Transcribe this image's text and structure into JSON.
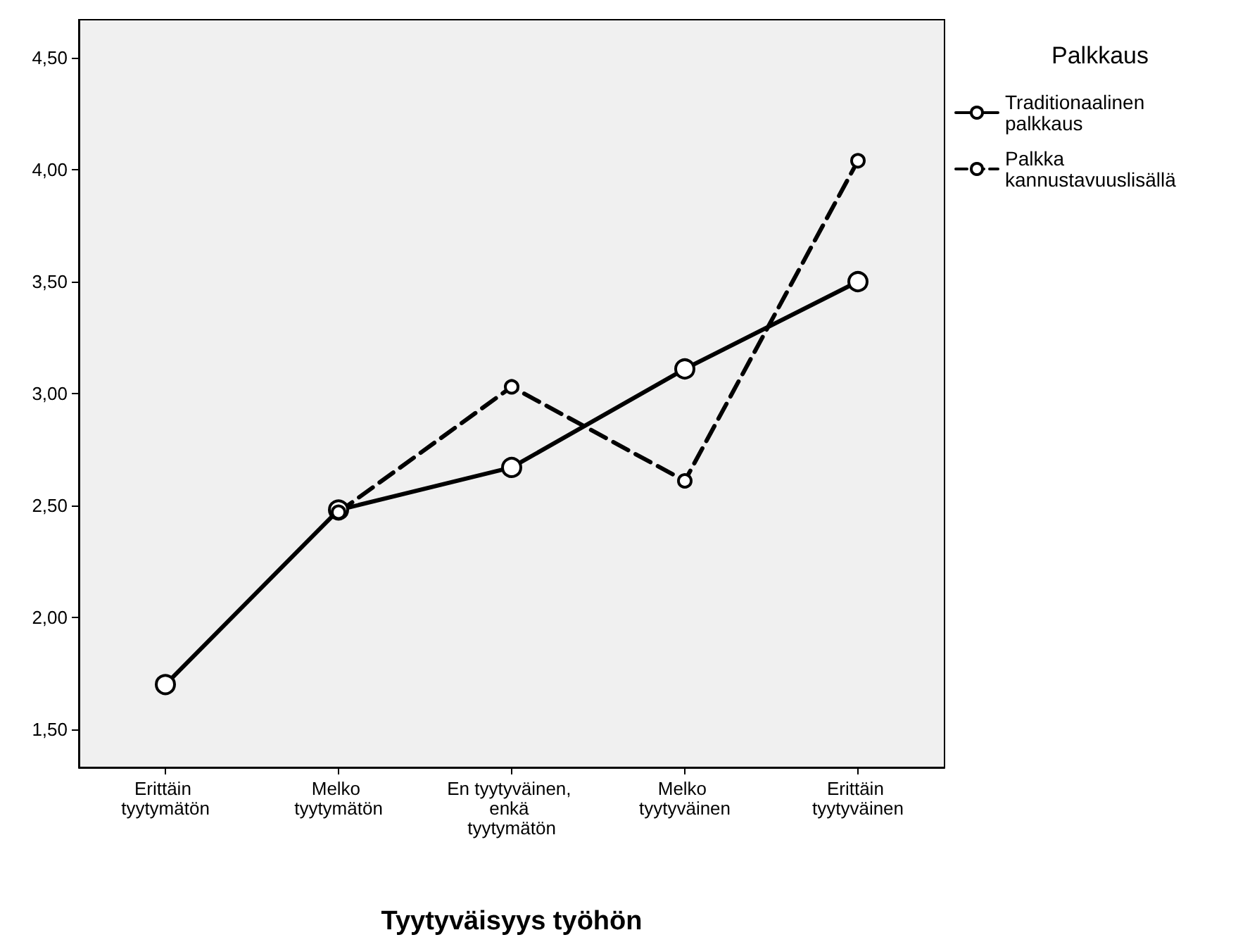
{
  "chart_data": {
    "type": "line",
    "xlabel": "Tyytyväisyys työhön",
    "legend_title": "Palkkaus",
    "legend": "top right",
    "marker": "circle",
    "grid": false,
    "categories": [
      "Erittäin tyytymätön",
      "Melko tyytymätön",
      "En tyytyväinen, enkä tyytymätön",
      "Melko tyytyväinen",
      "Erittäin tyytyväinen"
    ],
    "series": [
      {
        "name": "Traditionaalinen palkkaus",
        "color": "#000000",
        "line_style": "solid",
        "values": [
          1.7,
          2.48,
          2.67,
          3.11,
          3.5
        ]
      },
      {
        "name": "Palkka kannustavuuslisällä",
        "color": "#000000",
        "line_style": "dashed",
        "values": [
          null,
          2.47,
          3.03,
          2.61,
          4.04
        ]
      }
    ],
    "ylim": [
      1.33,
      4.67
    ],
    "yticks": [
      {
        "value": 1.5,
        "label": "1,50"
      },
      {
        "value": 2,
        "label": "2,00"
      },
      {
        "value": 2.5,
        "label": "2,50"
      },
      {
        "value": 3,
        "label": "3,00"
      },
      {
        "value": 3.5,
        "label": "3,50"
      },
      {
        "value": 4,
        "label": "4,00"
      },
      {
        "value": 4.5,
        "label": "4,50"
      }
    ]
  }
}
